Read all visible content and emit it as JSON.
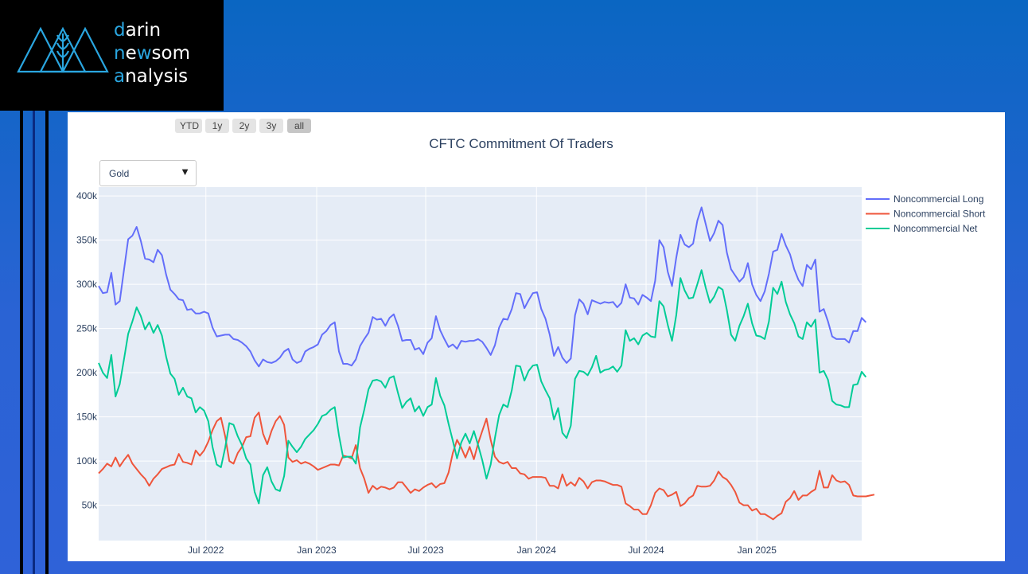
{
  "brand": {
    "line1_accent": "d",
    "line1_rest": "arin",
    "line2_accent": "n",
    "line2_mid": "e",
    "line2_accent2": "w",
    "line2_rest": "som",
    "line3_accent": "a",
    "line3_rest": "nalysis"
  },
  "range_buttons": [
    {
      "label": "YTD",
      "active": false
    },
    {
      "label": "1y",
      "active": false
    },
    {
      "label": "2y",
      "active": false
    },
    {
      "label": "3y",
      "active": false
    },
    {
      "label": "all",
      "active": true
    }
  ],
  "dropdown": {
    "selected": "Gold"
  },
  "colors": {
    "long": "#636efa",
    "short": "#ef553b",
    "net": "#00cc96",
    "plot_bg": "#e5ecf6"
  },
  "chart_data": {
    "type": "line",
    "title": "CFTC Commitment Of Traders",
    "x_start": "2022-01-04",
    "x_end": "2025-06-24",
    "x_step_days": 7,
    "ylim": [
      10000,
      410000
    ],
    "y_ticks": [
      50000,
      100000,
      150000,
      200000,
      250000,
      300000,
      350000,
      400000
    ],
    "y_tick_labels": [
      "50k",
      "100k",
      "150k",
      "200k",
      "250k",
      "300k",
      "350k",
      "400k"
    ],
    "x_ticks": [
      {
        "date": "2022-07-01",
        "label": "Jul 2022"
      },
      {
        "date": "2023-01-01",
        "label": "Jan 2023"
      },
      {
        "date": "2023-07-01",
        "label": "Jul 2023"
      },
      {
        "date": "2024-01-01",
        "label": "Jan 2024"
      },
      {
        "date": "2024-07-01",
        "label": "Jul 2024"
      },
      {
        "date": "2025-01-01",
        "label": "Jan 2025"
      }
    ],
    "legend_position": "top-right",
    "grid": true,
    "series": [
      {
        "name": "Noncommercial Long",
        "key": "long",
        "values": [
          298000,
          290000,
          291000,
          313000,
          277000,
          281000,
          316000,
          351000,
          355000,
          365000,
          349000,
          329000,
          328000,
          325000,
          339000,
          333000,
          311000,
          294000,
          289000,
          283000,
          282000,
          271000,
          272000,
          267000,
          267000,
          269000,
          267000,
          251000,
          241000,
          242000,
          243000,
          243000,
          238000,
          237000,
          234000,
          230000,
          224000,
          214000,
          207000,
          215000,
          212000,
          211000,
          213000,
          217000,
          224000,
          227000,
          215000,
          211000,
          213000,
          224000,
          227000,
          229000,
          232000,
          243000,
          247000,
          254000,
          257000,
          224000,
          210000,
          210000,
          208000,
          215000,
          230000,
          238000,
          245000,
          263000,
          260000,
          261000,
          253000,
          262000,
          266000,
          253000,
          236000,
          237000,
          237000,
          226000,
          228000,
          221000,
          234000,
          239000,
          264000,
          248000,
          238000,
          229000,
          232000,
          227000,
          236000,
          235000,
          236000,
          236000,
          238000,
          235000,
          228000,
          220000,
          231000,
          251000,
          261000,
          260000,
          272000,
          290000,
          289000,
          273000,
          282000,
          290000,
          291000,
          272000,
          261000,
          243000,
          219000,
          229000,
          217000,
          211000,
          216000,
          265000,
          283000,
          278000,
          266000,
          282000,
          280000,
          278000,
          280000,
          279000,
          280000,
          274000,
          279000,
          300000,
          285000,
          284000,
          277000,
          288000,
          285000,
          281000,
          304000,
          350000,
          342000,
          314000,
          298000,
          330000,
          356000,
          345000,
          342000,
          346000,
          372000,
          387000,
          368000,
          349000,
          358000,
          372000,
          367000,
          336000,
          317000,
          310000,
          303000,
          308000,
          324000,
          300000,
          288000,
          281000,
          292000,
          312000,
          337000,
          339000,
          357000,
          344000,
          334000,
          317000,
          305000,
          298000,
          322000,
          317000,
          328000,
          269000,
          272000,
          258000,
          241000,
          238000,
          238000,
          238000,
          234000,
          247000,
          247000,
          262000,
          257000
        ]
      },
      {
        "name": "Noncommercial Short",
        "key": "short",
        "values": [
          86000,
          91000,
          97000,
          94000,
          104000,
          94000,
          101000,
          107000,
          97000,
          91000,
          85000,
          80000,
          72000,
          80000,
          85000,
          91000,
          93000,
          95000,
          96000,
          108000,
          99000,
          98000,
          96000,
          112000,
          106000,
          112000,
          122000,
          135000,
          145000,
          149000,
          128000,
          100000,
          97000,
          109000,
          116000,
          127000,
          128000,
          149000,
          155000,
          131000,
          119000,
          134000,
          145000,
          151000,
          141000,
          104000,
          99000,
          101000,
          97000,
          99000,
          97000,
          94000,
          90000,
          92000,
          94000,
          96000,
          96000,
          95000,
          106000,
          105000,
          103000,
          118000,
          92000,
          80000,
          64000,
          72000,
          68000,
          71000,
          70000,
          68000,
          70000,
          76000,
          76000,
          70000,
          64000,
          68000,
          66000,
          70000,
          73000,
          75000,
          70000,
          74000,
          75000,
          87000,
          109000,
          124000,
          115000,
          104000,
          116000,
          102000,
          120000,
          134000,
          148000,
          124000,
          105000,
          99000,
          97000,
          99000,
          92000,
          92000,
          86000,
          85000,
          80000,
          82000,
          82000,
          82000,
          81000,
          72000,
          72000,
          69000,
          85000,
          72000,
          76000,
          72000,
          81000,
          77000,
          69000,
          76000,
          78000,
          78000,
          77000,
          75000,
          73000,
          73000,
          71000,
          52000,
          49000,
          45000,
          45000,
          40000,
          40000,
          50000,
          64000,
          69000,
          67000,
          60000,
          62000,
          65000,
          49000,
          52000,
          58000,
          61000,
          72000,
          71000,
          71000,
          72000,
          78000,
          88000,
          82000,
          79000,
          73000,
          65000,
          53000,
          50000,
          50000,
          44000,
          46000,
          40000,
          40000,
          37000,
          34000,
          38000,
          41000,
          54000,
          58000,
          66000,
          56000,
          61000,
          61000,
          65000,
          68000,
          89000,
          70000,
          70000,
          84000,
          78000,
          76000,
          77000,
          73000,
          61000,
          60000,
          60000,
          60000,
          61000,
          62000
        ]
      },
      {
        "name": "Noncommercial Net",
        "key": "net",
        "values": [
          211000,
          200000,
          194000,
          220000,
          173000,
          187000,
          215000,
          244000,
          258000,
          274000,
          264000,
          249000,
          257000,
          245000,
          254000,
          242000,
          218000,
          199000,
          193000,
          175000,
          183000,
          173000,
          171000,
          155000,
          161000,
          157000,
          145000,
          116000,
          96000,
          93000,
          115000,
          143000,
          141000,
          128000,
          118000,
          103000,
          96000,
          65000,
          52000,
          84000,
          93000,
          77000,
          68000,
          66000,
          83000,
          123000,
          116000,
          110000,
          116000,
          125000,
          130000,
          135000,
          142000,
          151000,
          153000,
          158000,
          161000,
          129000,
          104000,
          105000,
          105000,
          97000,
          138000,
          158000,
          181000,
          191000,
          192000,
          190000,
          183000,
          194000,
          196000,
          177000,
          160000,
          167000,
          171000,
          156000,
          162000,
          151000,
          161000,
          164000,
          194000,
          174000,
          163000,
          142000,
          123000,
          103000,
          121000,
          131000,
          120000,
          134000,
          118000,
          101000,
          80000,
          96000,
          126000,
          152000,
          164000,
          161000,
          180000,
          208000,
          207000,
          191000,
          202000,
          208000,
          209000,
          190000,
          180000,
          171000,
          147000,
          160000,
          132000,
          126000,
          140000,
          193000,
          202000,
          201000,
          197000,
          206000,
          219000,
          200000,
          203000,
          204000,
          207000,
          201000,
          208000,
          248000,
          236000,
          239000,
          232000,
          242000,
          245000,
          241000,
          240000,
          281000,
          275000,
          254000,
          236000,
          265000,
          307000,
          293000,
          284000,
          285000,
          300000,
          316000,
          296000,
          279000,
          286000,
          297000,
          294000,
          271000,
          243000,
          236000,
          253000,
          264000,
          278000,
          256000,
          242000,
          241000,
          238000,
          258000,
          296000,
          289000,
          303000,
          280000,
          266000,
          256000,
          241000,
          238000,
          257000,
          252000,
          260000,
          200000,
          202000,
          192000,
          168000,
          164000,
          163000,
          161000,
          161000,
          186000,
          187000,
          201000,
          195000
        ]
      }
    ]
  }
}
